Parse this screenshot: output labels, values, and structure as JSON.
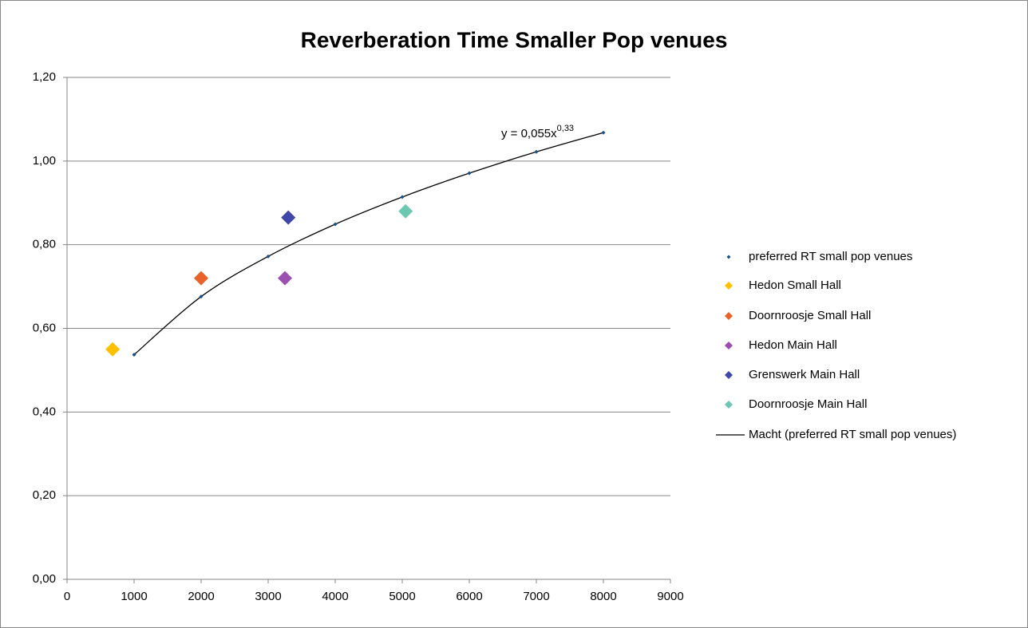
{
  "chart_data": {
    "type": "scatter",
    "title": "Reverberation Time Smaller Pop venues",
    "xlim": [
      0,
      9000
    ],
    "xticks": [
      0,
      1000,
      2000,
      3000,
      4000,
      5000,
      6000,
      7000,
      8000,
      9000
    ],
    "ylim": [
      0,
      1.2
    ],
    "yticks": [
      {
        "value": 0,
        "label": "0,00"
      },
      {
        "value": 0.2,
        "label": "0,20"
      },
      {
        "value": 0.4,
        "label": "0,40"
      },
      {
        "value": 0.6,
        "label": "0,60"
      },
      {
        "value": 0.8,
        "label": "0,80"
      },
      {
        "value": 1.0,
        "label": "1,00"
      },
      {
        "value": 1.2,
        "label": "1,20"
      }
    ],
    "grid": true,
    "legend": "right",
    "series": [
      {
        "name": "preferred RT small pop venues",
        "color": "#1f4e8c",
        "marker": "dot",
        "x": [
          1000,
          2000,
          3000,
          4000,
          5000,
          6000,
          7000,
          8000
        ],
        "values": [
          0.537,
          0.676,
          0.772,
          0.849,
          0.914,
          0.971,
          1.022,
          1.068
        ]
      },
      {
        "name": "Hedon Small Hall",
        "color": "#ffc000",
        "marker": "diamond",
        "x": [
          680
        ],
        "values": [
          0.55
        ]
      },
      {
        "name": "Doornroosje Small Hall",
        "color": "#e8622a",
        "marker": "diamond",
        "x": [
          2000
        ],
        "values": [
          0.72
        ]
      },
      {
        "name": "Hedon Main Hall",
        "color": "#9b4fb0",
        "marker": "diamond",
        "x": [
          3250
        ],
        "values": [
          0.72
        ]
      },
      {
        "name": "Grenswerk Main Hall",
        "color": "#3f48a8",
        "marker": "diamond",
        "x": [
          3300
        ],
        "values": [
          0.865
        ]
      },
      {
        "name": "Doornroosje Main Hall",
        "color": "#6cc8b0",
        "marker": "diamond",
        "x": [
          5050
        ],
        "values": [
          0.88
        ]
      }
    ],
    "trendline": {
      "name": "Macht (preferred RT small pop venues)",
      "color": "#000000",
      "equation": "y = 0,055x",
      "exponent": "0,33"
    }
  }
}
